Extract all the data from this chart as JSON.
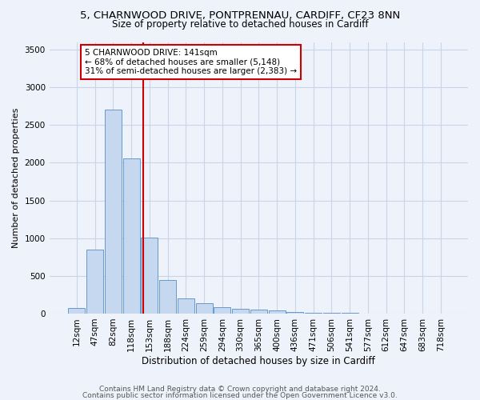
{
  "title_line1": "5, CHARNWOOD DRIVE, PONTPRENNAU, CARDIFF, CF23 8NN",
  "title_line2": "Size of property relative to detached houses in Cardiff",
  "xlabel": "Distribution of detached houses by size in Cardiff",
  "ylabel": "Number of detached properties",
  "bar_labels": [
    "12sqm",
    "47sqm",
    "82sqm",
    "118sqm",
    "153sqm",
    "188sqm",
    "224sqm",
    "259sqm",
    "294sqm",
    "330sqm",
    "365sqm",
    "400sqm",
    "436sqm",
    "471sqm",
    "506sqm",
    "541sqm",
    "577sqm",
    "612sqm",
    "647sqm",
    "683sqm",
    "718sqm"
  ],
  "bar_values": [
    75,
    850,
    2700,
    2060,
    1010,
    450,
    205,
    135,
    80,
    60,
    50,
    38,
    20,
    12,
    8,
    5,
    4,
    3,
    2,
    2,
    1
  ],
  "bar_color": "#c5d8f0",
  "bar_edge_color": "#6699cc",
  "grid_color": "#c8d4e8",
  "background_color": "#eef2fa",
  "plot_bg_color": "#eef2fa",
  "vline_color": "#cc0000",
  "annotation_text": "5 CHARNWOOD DRIVE: 141sqm\n← 68% of detached houses are smaller (5,148)\n31% of semi-detached houses are larger (2,383) →",
  "annotation_box_color": "#ffffff",
  "annotation_box_edge": "#cc0000",
  "footer_line1": "Contains HM Land Registry data © Crown copyright and database right 2024.",
  "footer_line2": "Contains public sector information licensed under the Open Government Licence v3.0.",
  "ylim": [
    0,
    3600
  ],
  "yticks": [
    0,
    500,
    1000,
    1500,
    2000,
    2500,
    3000,
    3500
  ],
  "title1_fontsize": 9.5,
  "title2_fontsize": 8.5,
  "xlabel_fontsize": 8.5,
  "ylabel_fontsize": 8.0,
  "tick_fontsize": 7.5,
  "footer_fontsize": 6.5
}
